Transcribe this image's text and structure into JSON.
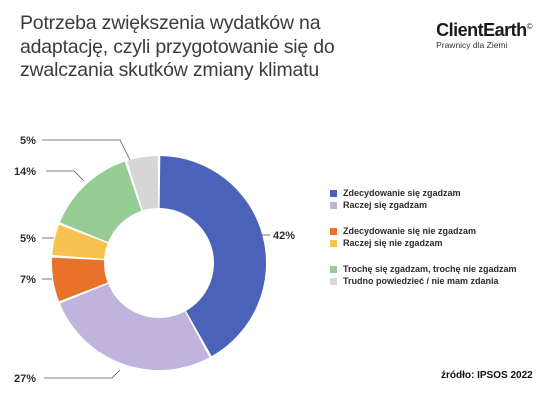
{
  "title": "Potrzeba zwiększenia wydatków na adaptację, czyli przygotowanie się do zwalczania skutków zmiany klimatu",
  "logo": {
    "name": "ClientEarth",
    "symbol": "©",
    "tagline": "Prawnicy dla Ziemi"
  },
  "source": "źródło: IPSOS 2022",
  "legend_groups": [
    [
      0,
      1
    ],
    [
      2,
      3
    ],
    [
      4,
      5
    ]
  ],
  "chart_data": {
    "type": "pie",
    "donut": true,
    "slices": [
      {
        "label": "Zdecydowanie się zgadzam",
        "value": 42,
        "value_label": "42%",
        "color": "#4a62b8"
      },
      {
        "label": "Raczej się zgadzam",
        "value": 27,
        "value_label": "27%",
        "color": "#c0b3dd"
      },
      {
        "label": "Zdecydowanie się nie zgadzam",
        "value": 7,
        "value_label": "7%",
        "color": "#e8722a"
      },
      {
        "label": "Raczej się nie zgadzam",
        "value": 5,
        "value_label": "5%",
        "color": "#f7c24f"
      },
      {
        "label": "Trochę się zgadzam, trochę nie zgadzam",
        "value": 14,
        "value_label": "14%",
        "color": "#96cc96"
      },
      {
        "label": "Trudno powiedzieć / nie mam zdania",
        "value": 5,
        "value_label": "5%",
        "color": "#d6d6d6"
      }
    ]
  }
}
